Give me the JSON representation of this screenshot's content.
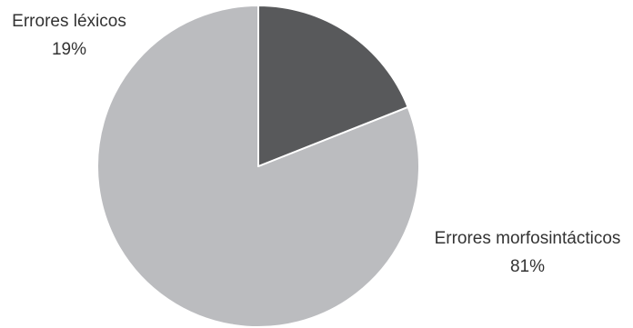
{
  "chart_data": {
    "type": "pie",
    "title": "",
    "slices": [
      {
        "label": "Errores morfosintácticos",
        "value": 81,
        "value_label": "81%",
        "color": "#bbbcbf"
      },
      {
        "label": "Errores léxicos",
        "value": 19,
        "value_label": "19%",
        "color": "#58595b"
      }
    ],
    "start_angle_deg": 0,
    "direction": "counterclockwise",
    "slice_border_color": "#ffffff",
    "legend": "none"
  }
}
